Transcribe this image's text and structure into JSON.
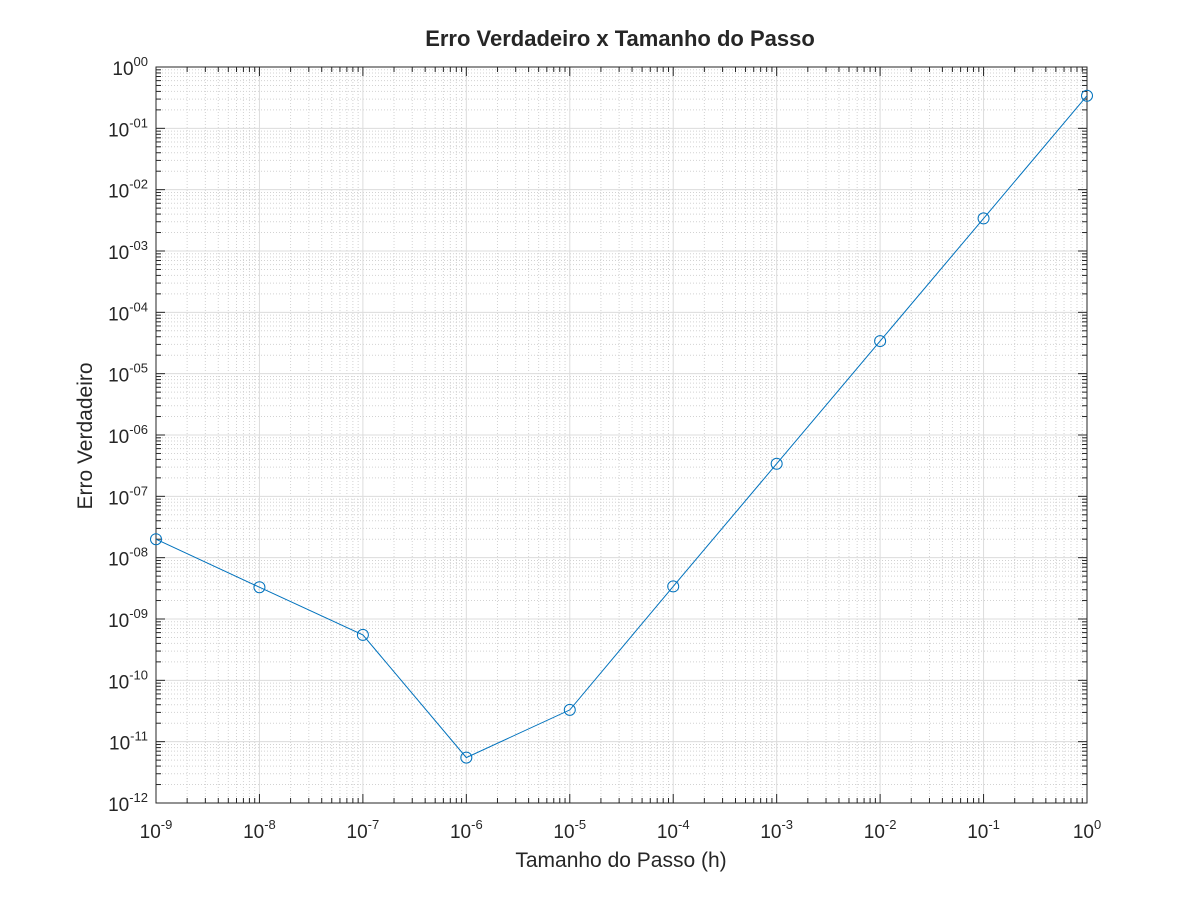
{
  "chart_data": {
    "type": "line",
    "title": "Erro Verdadeiro x Tamanho do Passo",
    "xlabel": "Tamanho do Passo (h)",
    "ylabel": "Erro Verdadeiro",
    "xscale": "log",
    "yscale": "log",
    "xlim": [
      1e-09,
      1
    ],
    "ylim": [
      1e-12,
      1
    ],
    "grid": true,
    "minor_grid": true,
    "marker": "circle",
    "line_color": "#0072bd",
    "x_ticks": [
      {
        "base": "10",
        "exp": "-9"
      },
      {
        "base": "10",
        "exp": "-8"
      },
      {
        "base": "10",
        "exp": "-7"
      },
      {
        "base": "10",
        "exp": "-6"
      },
      {
        "base": "10",
        "exp": "-5"
      },
      {
        "base": "10",
        "exp": "-4"
      },
      {
        "base": "10",
        "exp": "-3"
      },
      {
        "base": "10",
        "exp": "-2"
      },
      {
        "base": "10",
        "exp": "-1"
      },
      {
        "base": "10",
        "exp": "0"
      }
    ],
    "y_ticks": [
      {
        "base": "10",
        "exp": "-12"
      },
      {
        "base": "10",
        "exp": "-11"
      },
      {
        "base": "10",
        "exp": "-10"
      },
      {
        "base": "10",
        "exp": "-09"
      },
      {
        "base": "10",
        "exp": "-08"
      },
      {
        "base": "10",
        "exp": "-07"
      },
      {
        "base": "10",
        "exp": "-06"
      },
      {
        "base": "10",
        "exp": "-05"
      },
      {
        "base": "10",
        "exp": "-04"
      },
      {
        "base": "10",
        "exp": "-03"
      },
      {
        "base": "10",
        "exp": "-02"
      },
      {
        "base": "10",
        "exp": "-01"
      },
      {
        "base": "10",
        "exp": "00"
      }
    ],
    "x": [
      1e-09,
      1e-08,
      1e-07,
      1e-06,
      1e-05,
      0.0001,
      0.001,
      0.01,
      0.1,
      1
    ],
    "y": [
      2e-08,
      3.3e-09,
      5.5e-10,
      5.5e-12,
      3.3e-11,
      3.4e-09,
      3.4e-07,
      3.4e-05,
      0.0034,
      0.34
    ]
  }
}
